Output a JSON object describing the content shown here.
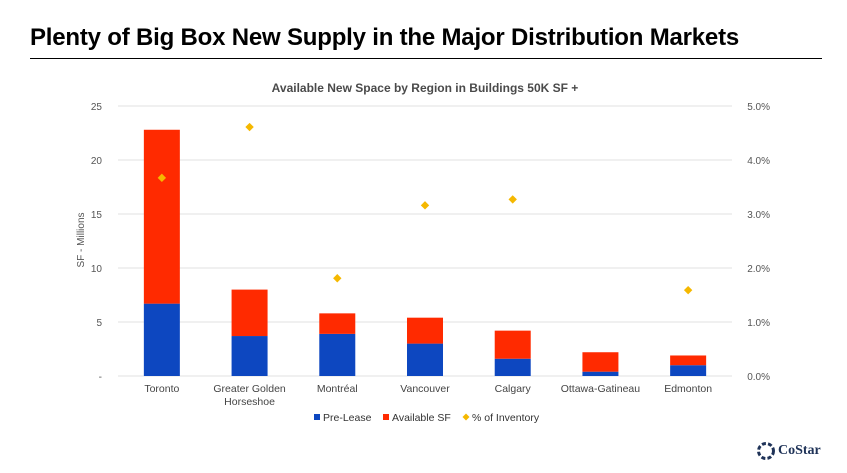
{
  "slide": {
    "title": "Plenty of Big Box New Supply in the Major Distribution Markets"
  },
  "logo": {
    "text": "CoStar",
    "icon": "costar-logo-icon"
  },
  "colors": {
    "pre_lease": "#0d47c0",
    "available_sf": "#ff2a00",
    "pct_inventory": "#f5b800",
    "grid": "#e2e2e2",
    "text": "#444444"
  },
  "chart_data": {
    "type": "bar",
    "stacked": true,
    "title": "Available New Space by Region in Buildings 50K SF +",
    "ylabel": "SF - Millions",
    "ylabel_right": "",
    "categories": [
      "Toronto",
      "Greater Golden Horseshoe",
      "Montréal",
      "Vancouver",
      "Calgary",
      "Ottawa-Gatineau",
      "Edmonton"
    ],
    "category_lines": [
      [
        "Toronto"
      ],
      [
        "Greater Golden",
        "Horseshoe"
      ],
      [
        "Montréal"
      ],
      [
        "Vancouver"
      ],
      [
        "Calgary"
      ],
      [
        "Ottawa-Gatineau"
      ],
      [
        "Edmonton"
      ]
    ],
    "series": [
      {
        "name": "Pre-Lease",
        "type": "bar",
        "values": [
          6.7,
          3.7,
          3.9,
          3.0,
          1.6,
          0.4,
          1.0
        ]
      },
      {
        "name": "Available SF",
        "type": "bar",
        "values": [
          16.1,
          4.3,
          1.9,
          2.4,
          2.6,
          1.8,
          0.9
        ]
      },
      {
        "name": "% of Inventory",
        "type": "scatter",
        "axis": "right",
        "values": [
          3.67,
          4.61,
          1.81,
          3.16,
          3.27,
          null,
          1.59
        ]
      }
    ],
    "ylim": [
      0,
      25
    ],
    "yticks": [
      0,
      5,
      10,
      15,
      20,
      25
    ],
    "ytick_labels": [
      "-",
      "5",
      "10",
      "15",
      "20",
      "25"
    ],
    "ylim_right": [
      0,
      5
    ],
    "yticks_right": [
      0,
      1,
      2,
      3,
      4,
      5
    ],
    "ytick_labels_right": [
      "0.0%",
      "1.0%",
      "2.0%",
      "3.0%",
      "4.0%",
      "5.0%"
    ],
    "grid": true,
    "legend": "bottom-center"
  }
}
